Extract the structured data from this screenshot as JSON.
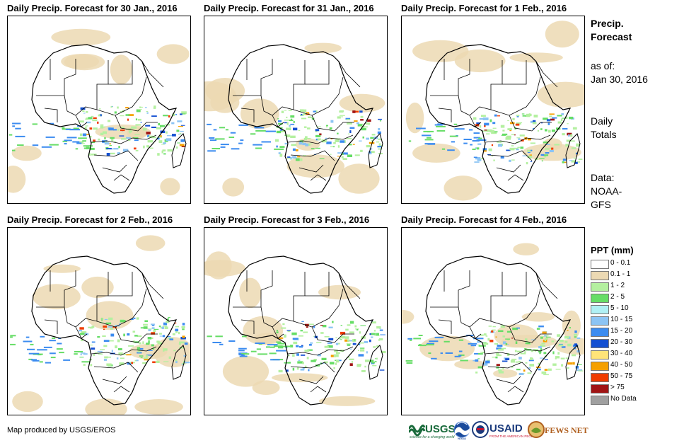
{
  "panels": [
    {
      "title": "Daily Precip. Forecast for 30 Jan., 2016"
    },
    {
      "title": "Daily Precip. Forecast for 31 Jan., 2016"
    },
    {
      "title": "Daily Precip. Forecast for 1 Feb., 2016"
    },
    {
      "title": "Daily Precip. Forecast for 2 Feb., 2016"
    },
    {
      "title": "Daily Precip. Forecast for 3 Feb., 2016"
    },
    {
      "title": "Daily Precip. Forecast for 4 Feb., 2016"
    }
  ],
  "sidebar": {
    "title_line1": "Precip.",
    "title_line2": "Forecast",
    "asof_label": "as of:",
    "asof_date": "Jan 30, 2016",
    "totals_line1": "Daily",
    "totals_line2": "Totals",
    "data_line1": "Data:",
    "data_line2": "NOAA-",
    "data_line3": "GFS"
  },
  "legend": {
    "title": "PPT (mm)",
    "items": [
      {
        "label": "0 - 0.1",
        "color": "#ffffff"
      },
      {
        "label": "0.1 - 1",
        "color": "#ecd9b3"
      },
      {
        "label": "1 - 2",
        "color": "#b4f0a0"
      },
      {
        "label": "2 - 5",
        "color": "#66dd66"
      },
      {
        "label": "5 - 10",
        "color": "#b0f0f4"
      },
      {
        "label": "10 - 15",
        "color": "#8cc4f4"
      },
      {
        "label": "15 - 20",
        "color": "#3c8cf0"
      },
      {
        "label": "20 - 30",
        "color": "#1450d2"
      },
      {
        "label": "30 - 40",
        "color": "#ffe478"
      },
      {
        "label": "40 - 50",
        "color": "#f5a000"
      },
      {
        "label": "50 - 75",
        "color": "#f03c00"
      },
      {
        "label": "> 75",
        "color": "#a01414"
      },
      {
        "label": "No Data",
        "color": "#a0a0a0"
      }
    ]
  },
  "footer": {
    "credit": "Map produced by USGS/EROS",
    "logos": {
      "usgs": "USGS",
      "usgs_tag": "science for a changing world",
      "noaa": "NOAA",
      "usaid": "USAID",
      "usaid_tag": "FROM THE AMERICAN PEOPLE",
      "fews": "FEWS NET"
    }
  }
}
